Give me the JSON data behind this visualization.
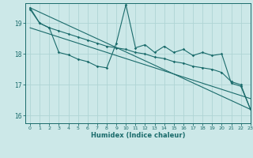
{
  "xlabel": "Humidex (Indice chaleur)",
  "bg_color": "#cce8e8",
  "line_color": "#1a6b6b",
  "grid_color": "#afd4d4",
  "xlim": [
    -0.5,
    23
  ],
  "ylim": [
    15.75,
    19.65
  ],
  "yticks": [
    16,
    17,
    18,
    19
  ],
  "xticks": [
    0,
    1,
    2,
    3,
    4,
    5,
    6,
    7,
    8,
    9,
    10,
    11,
    12,
    13,
    14,
    15,
    16,
    17,
    18,
    19,
    20,
    21,
    22,
    23
  ],
  "series1_x": [
    0,
    1,
    2,
    3,
    4,
    5,
    6,
    7,
    8,
    9,
    10,
    11,
    12,
    13,
    14,
    15,
    16,
    17,
    18,
    19,
    20,
    21,
    22,
    23
  ],
  "series1_y": [
    19.5,
    19.0,
    18.85,
    18.05,
    17.97,
    17.83,
    17.75,
    17.6,
    17.55,
    18.35,
    19.6,
    18.2,
    18.3,
    18.05,
    18.25,
    18.05,
    18.15,
    17.95,
    18.05,
    17.95,
    18.0,
    17.05,
    16.95,
    16.2
  ],
  "series2_x": [
    0,
    1,
    2,
    3,
    4,
    5,
    6,
    7,
    8,
    9,
    10,
    11,
    12,
    13,
    14,
    15,
    16,
    17,
    18,
    19,
    20,
    21,
    22,
    23
  ],
  "series2_y": [
    19.45,
    19.0,
    18.85,
    18.75,
    18.65,
    18.55,
    18.45,
    18.35,
    18.25,
    18.2,
    18.15,
    18.05,
    18.0,
    17.9,
    17.85,
    17.75,
    17.7,
    17.6,
    17.55,
    17.5,
    17.4,
    17.1,
    17.0,
    16.2
  ],
  "trend1_x": [
    0,
    23
  ],
  "trend1_y": [
    19.5,
    16.2
  ],
  "trend2_x": [
    0,
    23
  ],
  "trend2_y": [
    18.85,
    16.55
  ]
}
